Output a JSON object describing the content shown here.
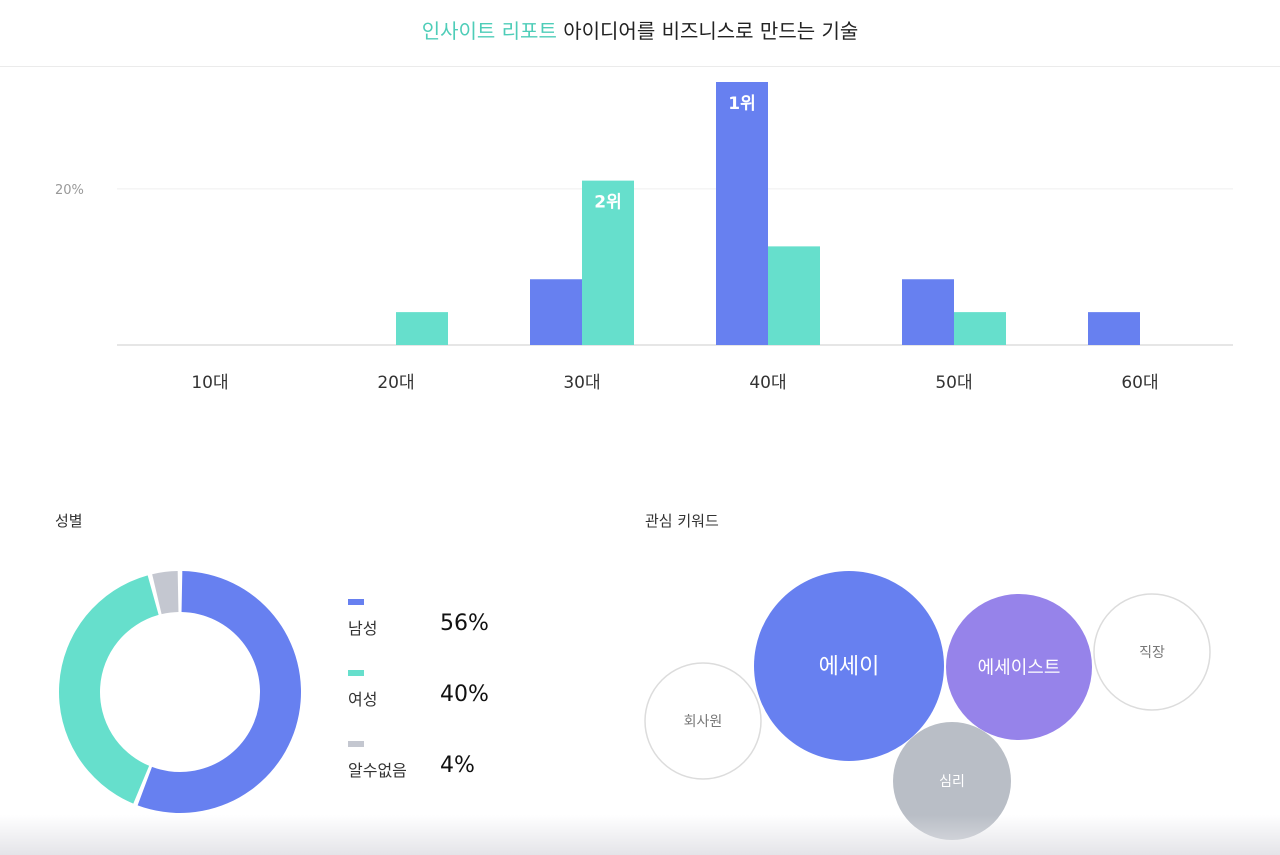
{
  "header": {
    "accent_text": "인사이트 리포트",
    "title_text": "아이디어를 비즈니스로 만드는 기술"
  },
  "colors": {
    "accent": "#4ecdb8",
    "male": "#6780f0",
    "female": "#66dfcc",
    "unknown": "#c4c7d0",
    "purple": "#9683ea",
    "gray_bubble": "#b9bec6"
  },
  "chart_data": [
    {
      "type": "bar",
      "title": "",
      "xlabel": "",
      "ylabel": "",
      "categories": [
        "10대",
        "20대",
        "30대",
        "40대",
        "50대",
        "60대"
      ],
      "series": [
        {
          "values": [
            0,
            0,
            4,
            16,
            4,
            2
          ]
        },
        {
          "values": [
            0,
            2,
            10,
            6,
            2,
            0
          ]
        }
      ],
      "ylim": [
        0,
        16
      ],
      "yticks": [
        {
          "value": 9.5,
          "label": "20%"
        }
      ],
      "rank_labels": [
        {
          "text": "1위",
          "category": "40대",
          "series": 0
        },
        {
          "text": "2위",
          "category": "30대",
          "series": 1
        }
      ]
    },
    {
      "type": "pie",
      "title": "성별",
      "labels": [
        "남성",
        "여성",
        "알수없음"
      ],
      "values": [
        56,
        40,
        4
      ],
      "value_labels": [
        "56%",
        "40%",
        "4%"
      ]
    },
    {
      "type": "bubble",
      "title": "관심 키워드",
      "bubbles": [
        {
          "label": "에세이",
          "weight": 95,
          "style": "male"
        },
        {
          "label": "에세이스트",
          "weight": 73,
          "style": "purple"
        },
        {
          "label": "직장",
          "weight": 58,
          "style": "outline"
        },
        {
          "label": "회사원",
          "weight": 58,
          "style": "outline"
        },
        {
          "label": "심리",
          "weight": 59,
          "style": "gray_bubble"
        }
      ]
    }
  ]
}
